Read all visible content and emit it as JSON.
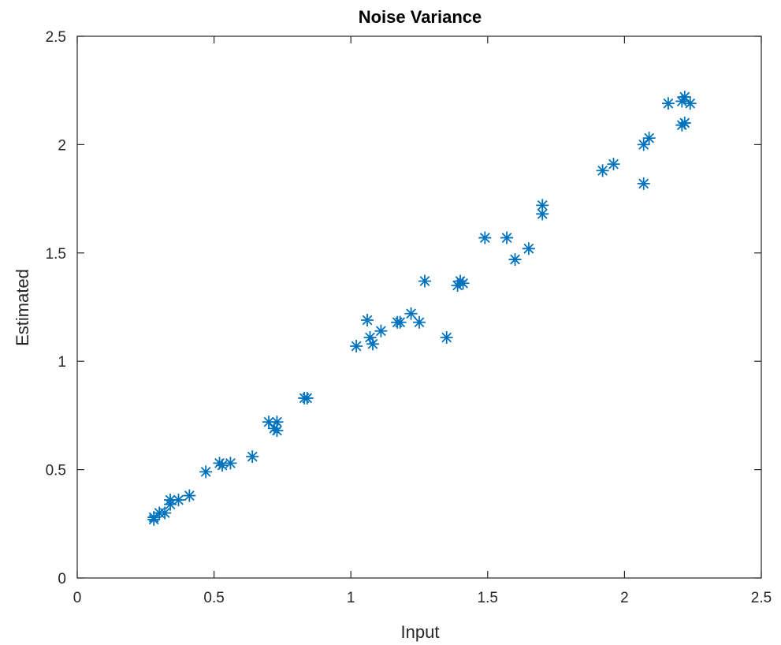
{
  "chart_data": {
    "type": "scatter",
    "title": "Noise Variance",
    "xlabel": "Input",
    "ylabel": "Estimated",
    "xlim": [
      0,
      2.5
    ],
    "ylim": [
      0,
      2.5
    ],
    "xticks": [
      0,
      0.5,
      1,
      1.5,
      2,
      2.5
    ],
    "yticks": [
      0,
      0.5,
      1,
      1.5,
      2,
      2.5
    ],
    "xtick_labels": [
      "0",
      "0.5",
      "1",
      "1.5",
      "2",
      "2.5"
    ],
    "ytick_labels": [
      "0",
      "0.5",
      "1",
      "1.5",
      "2",
      "2.5"
    ],
    "grid": false,
    "marker": "asterisk",
    "color": "#0072BD",
    "series": [
      {
        "points": [
          [
            0.28,
            0.27
          ],
          [
            0.28,
            0.28
          ],
          [
            0.3,
            0.3
          ],
          [
            0.32,
            0.3
          ],
          [
            0.34,
            0.34
          ],
          [
            0.34,
            0.36
          ],
          [
            0.37,
            0.36
          ],
          [
            0.41,
            0.38
          ],
          [
            0.47,
            0.49
          ],
          [
            0.52,
            0.53
          ],
          [
            0.53,
            0.52
          ],
          [
            0.56,
            0.53
          ],
          [
            0.64,
            0.56
          ],
          [
            0.7,
            0.72
          ],
          [
            0.72,
            0.69
          ],
          [
            0.73,
            0.72
          ],
          [
            0.73,
            0.68
          ],
          [
            0.83,
            0.83
          ],
          [
            0.84,
            0.83
          ],
          [
            1.02,
            1.07
          ],
          [
            1.06,
            1.19
          ],
          [
            1.07,
            1.11
          ],
          [
            1.08,
            1.08
          ],
          [
            1.11,
            1.14
          ],
          [
            1.17,
            1.18
          ],
          [
            1.18,
            1.18
          ],
          [
            1.22,
            1.22
          ],
          [
            1.25,
            1.18
          ],
          [
            1.27,
            1.37
          ],
          [
            1.35,
            1.11
          ],
          [
            1.39,
            1.35
          ],
          [
            1.4,
            1.37
          ],
          [
            1.41,
            1.36
          ],
          [
            1.49,
            1.57
          ],
          [
            1.57,
            1.57
          ],
          [
            1.6,
            1.47
          ],
          [
            1.65,
            1.52
          ],
          [
            1.7,
            1.68
          ],
          [
            1.7,
            1.72
          ],
          [
            1.92,
            1.88
          ],
          [
            1.96,
            1.91
          ],
          [
            2.07,
            2.0
          ],
          [
            2.07,
            1.82
          ],
          [
            2.09,
            2.03
          ],
          [
            2.16,
            2.19
          ],
          [
            2.21,
            2.2
          ],
          [
            2.21,
            2.09
          ],
          [
            2.22,
            2.1
          ],
          [
            2.22,
            2.22
          ],
          [
            2.24,
            2.19
          ]
        ]
      }
    ]
  }
}
